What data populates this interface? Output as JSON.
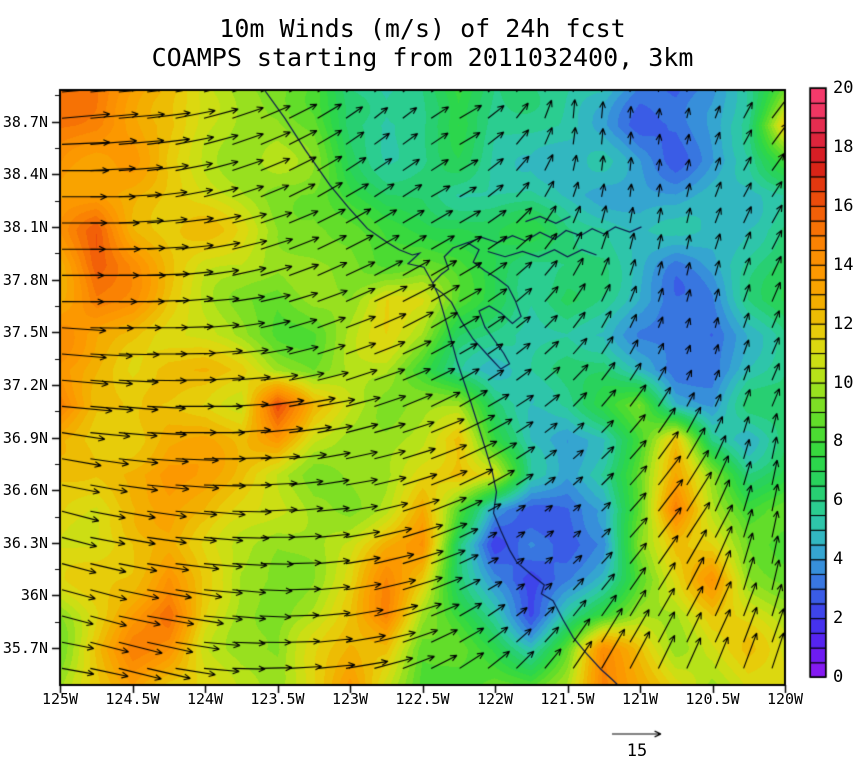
{
  "chart_data": {
    "type": "heatmap",
    "variant": "wind_vector_field_map",
    "title": "10m Winds (m/s) of 24h fcst",
    "subtitle": "COAMPS starting from 2011032400, 3km",
    "units": "m/s",
    "lon_range": [
      -125,
      -120
    ],
    "lat_range": [
      35.49,
      38.88
    ],
    "x_axis": {
      "tick_labels": [
        "125W",
        "124.5W",
        "124W",
        "123.5W",
        "123W",
        "122.5W",
        "122W",
        "121.5W",
        "121W",
        "120.5W",
        "120W"
      ],
      "tick_values": [
        -125,
        -124.5,
        -124,
        -123.5,
        -123,
        -122.5,
        -122,
        -121.5,
        -121,
        -120.5,
        -120
      ]
    },
    "y_axis": {
      "tick_labels": [
        "38.7N",
        "38.4N",
        "38.1N",
        "37.8N",
        "37.5N",
        "37.2N",
        "36.9N",
        "36.6N",
        "36.3N",
        "36N",
        "35.7N"
      ],
      "tick_values": [
        38.7,
        38.4,
        38.1,
        37.8,
        37.5,
        37.2,
        36.9,
        36.6,
        36.3,
        36,
        35.7
      ]
    },
    "colorbar": {
      "min": 0,
      "max": 20,
      "segment_step": 0.5,
      "tick_labels": [
        "20",
        "18",
        "16",
        "14",
        "12",
        "10",
        "8",
        "6",
        "4",
        "2",
        "0"
      ],
      "tick_values": [
        20,
        18,
        16,
        14,
        12,
        10,
        8,
        6,
        4,
        2,
        0
      ],
      "stops": [
        [
          0,
          "#A020F2"
        ],
        [
          1,
          "#7A18F2"
        ],
        [
          2,
          "#4A28F0"
        ],
        [
          3,
          "#3A4EE8"
        ],
        [
          4,
          "#3884DE"
        ],
        [
          5,
          "#34B0CC"
        ],
        [
          6,
          "#2CCC9E"
        ],
        [
          7,
          "#27D064"
        ],
        [
          8,
          "#2ED844"
        ],
        [
          9,
          "#55DC2C"
        ],
        [
          10,
          "#8AE022"
        ],
        [
          11,
          "#C4E216"
        ],
        [
          12,
          "#E4D40E"
        ],
        [
          13,
          "#F0B400"
        ],
        [
          14,
          "#FC9D00"
        ],
        [
          15,
          "#FB8A02"
        ],
        [
          16,
          "#F56A06"
        ],
        [
          17,
          "#E8420D"
        ],
        [
          18,
          "#D41A1A"
        ],
        [
          19,
          "#E02847"
        ],
        [
          20,
          "#F43A6B"
        ]
      ]
    },
    "reference_arrow": {
      "speed_m_s": 15,
      "label": "15"
    },
    "grid": {
      "cols": 21,
      "rows": 18,
      "speed": [
        [
          15,
          15,
          14,
          13,
          11,
          10,
          10,
          9,
          6,
          5,
          6,
          8,
          6,
          6,
          6,
          6,
          4,
          3,
          4,
          6,
          9
        ],
        [
          15,
          15,
          14,
          13,
          11,
          10,
          10,
          9,
          6,
          5,
          6,
          8,
          6,
          6,
          6,
          5,
          3,
          3,
          4,
          6,
          12
        ],
        [
          15,
          14,
          14,
          12,
          11,
          10,
          10,
          9,
          7,
          6,
          6,
          7,
          6,
          6,
          5,
          5,
          4,
          3,
          4,
          5,
          8
        ],
        [
          14,
          14,
          13,
          12,
          11,
          10,
          9,
          9,
          8,
          7,
          7,
          6,
          6,
          6,
          5,
          4,
          4,
          4,
          5,
          5,
          6
        ],
        [
          14,
          16,
          13,
          12,
          12,
          11,
          10,
          10,
          9,
          8,
          8,
          8,
          7,
          7,
          6,
          6,
          5,
          5,
          5,
          6,
          7
        ],
        [
          13,
          16,
          14,
          12,
          11,
          11,
          10,
          10,
          10,
          9,
          9,
          8,
          7,
          6,
          6,
          6,
          5,
          4,
          5,
          6,
          7
        ],
        [
          13,
          15,
          14,
          12,
          11,
          10,
          9,
          10,
          10,
          12,
          11,
          8,
          7,
          6,
          7,
          6,
          5,
          4,
          4,
          6,
          7
        ],
        [
          14,
          13,
          13,
          12,
          11,
          10,
          9,
          9,
          10,
          11,
          10,
          7,
          6,
          5,
          6,
          6,
          4,
          3,
          3,
          5,
          6
        ],
        [
          14,
          13,
          12,
          13,
          13,
          12,
          10,
          9,
          10,
          10,
          8,
          6,
          5,
          6,
          7,
          7,
          5,
          3,
          3,
          5,
          6
        ],
        [
          16,
          13,
          12,
          12,
          12,
          11,
          16,
          12,
          11,
          10,
          10,
          10,
          7,
          6,
          6,
          7,
          9,
          5,
          4,
          6,
          6
        ],
        [
          13,
          12,
          12,
          13,
          13,
          12,
          14,
          11,
          10,
          10,
          11,
          13,
          8,
          5,
          4,
          5,
          8,
          12,
          6,
          5,
          7
        ],
        [
          12,
          12,
          13,
          14,
          13,
          12,
          11,
          10,
          10,
          10,
          12,
          13,
          11,
          5,
          4,
          6,
          9,
          13,
          10,
          7,
          8
        ],
        [
          12,
          11,
          12,
          13,
          13,
          12,
          11,
          10,
          10,
          11,
          13,
          8,
          4,
          3,
          3,
          4,
          9,
          16,
          11,
          8,
          9
        ],
        [
          11,
          11,
          12,
          13,
          12,
          11,
          10,
          10,
          11,
          13,
          14,
          6,
          2,
          4,
          3,
          4,
          10,
          13,
          12,
          9,
          8
        ],
        [
          11,
          12,
          13,
          15,
          12,
          10,
          10,
          10,
          11,
          14,
          12,
          7,
          4,
          2,
          4,
          6,
          9,
          11,
          14,
          10,
          9
        ],
        [
          10,
          12,
          14,
          16,
          12,
          10,
          9,
          10,
          12,
          15,
          10,
          8,
          6,
          3,
          6,
          8,
          10,
          10,
          12,
          11,
          10
        ],
        [
          10,
          13,
          15,
          14,
          11,
          10,
          9,
          11,
          13,
          13,
          9,
          9,
          8,
          6,
          9,
          14,
          12,
          10,
          11,
          12,
          11
        ],
        [
          10,
          12,
          14,
          12,
          11,
          10,
          10,
          12,
          14,
          11,
          9,
          9,
          9,
          8,
          10,
          15,
          13,
          11,
          10,
          12,
          12
        ]
      ],
      "direction_deg_ccw_from_east": [
        [
          5,
          5,
          5,
          10,
          15,
          20,
          25,
          30,
          35,
          40,
          30,
          30,
          40,
          60,
          85,
          85,
          85,
          80,
          70,
          60,
          45
        ],
        [
          5,
          5,
          5,
          10,
          15,
          20,
          25,
          30,
          35,
          40,
          35,
          30,
          40,
          60,
          85,
          85,
          85,
          80,
          70,
          60,
          50
        ],
        [
          0,
          5,
          5,
          10,
          15,
          20,
          25,
          30,
          35,
          35,
          35,
          30,
          40,
          55,
          80,
          85,
          85,
          80,
          70,
          60,
          50
        ],
        [
          0,
          0,
          5,
          10,
          15,
          20,
          25,
          30,
          30,
          35,
          30,
          30,
          40,
          55,
          70,
          80,
          85,
          80,
          70,
          60,
          55
        ],
        [
          0,
          0,
          5,
          5,
          10,
          15,
          20,
          25,
          30,
          30,
          30,
          30,
          35,
          50,
          65,
          75,
          80,
          80,
          70,
          65,
          60
        ],
        [
          0,
          0,
          0,
          5,
          10,
          15,
          20,
          25,
          25,
          30,
          30,
          30,
          35,
          45,
          60,
          70,
          75,
          80,
          75,
          70,
          60
        ],
        [
          0,
          0,
          0,
          5,
          5,
          10,
          15,
          20,
          25,
          25,
          30,
          30,
          35,
          45,
          55,
          65,
          70,
          75,
          75,
          70,
          65
        ],
        [
          -5,
          0,
          0,
          0,
          5,
          10,
          15,
          20,
          20,
          25,
          30,
          30,
          35,
          40,
          50,
          60,
          65,
          70,
          75,
          70,
          65
        ],
        [
          -5,
          -5,
          0,
          0,
          5,
          5,
          10,
          15,
          20,
          20,
          25,
          30,
          35,
          40,
          45,
          55,
          60,
          65,
          70,
          70,
          65
        ],
        [
          -5,
          -5,
          -5,
          0,
          0,
          5,
          10,
          10,
          15,
          20,
          25,
          30,
          30,
          35,
          45,
          50,
          55,
          60,
          65,
          70,
          65
        ],
        [
          -10,
          -5,
          -5,
          0,
          0,
          5,
          5,
          10,
          15,
          15,
          20,
          25,
          30,
          35,
          40,
          45,
          50,
          60,
          65,
          75,
          80
        ],
        [
          -10,
          -10,
          -5,
          -5,
          0,
          0,
          5,
          10,
          10,
          15,
          20,
          25,
          30,
          35,
          40,
          45,
          50,
          55,
          65,
          75,
          80
        ],
        [
          -15,
          -10,
          -10,
          -5,
          -5,
          0,
          5,
          5,
          10,
          15,
          20,
          25,
          30,
          35,
          40,
          45,
          50,
          55,
          65,
          75,
          80
        ],
        [
          -15,
          -10,
          -10,
          -5,
          -5,
          0,
          0,
          5,
          10,
          15,
          20,
          25,
          30,
          35,
          40,
          45,
          50,
          55,
          60,
          75,
          80
        ],
        [
          -15,
          -15,
          -10,
          -10,
          -5,
          -5,
          0,
          5,
          10,
          15,
          20,
          25,
          30,
          40,
          45,
          50,
          55,
          60,
          70,
          75,
          80
        ],
        [
          -15,
          -15,
          -10,
          -10,
          -5,
          -5,
          0,
          5,
          10,
          15,
          20,
          30,
          35,
          40,
          50,
          55,
          60,
          60,
          65,
          70,
          75
        ],
        [
          -10,
          -15,
          -15,
          -10,
          -5,
          0,
          0,
          5,
          10,
          15,
          25,
          30,
          40,
          45,
          55,
          60,
          60,
          65,
          65,
          70,
          70
        ],
        [
          -10,
          -10,
          -15,
          -10,
          -5,
          0,
          5,
          5,
          10,
          20,
          25,
          35,
          40,
          50,
          55,
          60,
          65,
          65,
          70,
          70,
          75
        ]
      ]
    },
    "map": {
      "coastline": [
        [
          -123.59,
          38.88
        ],
        [
          -123.45,
          38.72
        ],
        [
          -123.31,
          38.54
        ],
        [
          -123.14,
          38.34
        ],
        [
          -123.01,
          38.21
        ],
        [
          -122.88,
          38.09
        ],
        [
          -122.74,
          38.01
        ],
        [
          -122.66,
          37.97
        ],
        [
          -122.57,
          37.94
        ],
        [
          -122.52,
          37.95
        ],
        [
          -122.6,
          37.89
        ],
        [
          -122.49,
          37.87
        ],
        [
          -122.43,
          37.78
        ],
        [
          -122.39,
          37.71
        ],
        [
          -122.32,
          37.51
        ],
        [
          -122.26,
          37.33
        ],
        [
          -122.17,
          37.11
        ],
        [
          -122.09,
          36.9
        ],
        [
          -122.02,
          36.71
        ],
        [
          -121.99,
          36.59
        ],
        [
          -122.01,
          36.47
        ],
        [
          -121.96,
          36.37
        ],
        [
          -121.9,
          36.26
        ],
        [
          -121.85,
          36.19
        ],
        [
          -121.75,
          36.12
        ],
        [
          -121.66,
          36.06
        ],
        [
          -121.68,
          36.01
        ],
        [
          -121.6,
          35.97
        ],
        [
          -121.53,
          35.86
        ],
        [
          -121.46,
          35.76
        ],
        [
          -121.37,
          35.67
        ],
        [
          -121.27,
          35.58
        ],
        [
          -121.19,
          35.52
        ],
        [
          -121.14,
          35.48
        ]
      ],
      "bay": [
        [
          -122.43,
          37.78
        ],
        [
          -122.37,
          37.83
        ],
        [
          -122.32,
          37.86
        ],
        [
          -122.35,
          37.93
        ],
        [
          -122.29,
          37.98
        ],
        [
          -122.19,
          38.01
        ],
        [
          -122.11,
          37.97
        ],
        [
          -122.15,
          37.9
        ],
        [
          -122.07,
          37.85
        ],
        [
          -121.99,
          37.81
        ],
        [
          -121.91,
          37.76
        ],
        [
          -121.86,
          37.68
        ],
        [
          -121.82,
          37.59
        ],
        [
          -121.88,
          37.55
        ],
        [
          -121.96,
          37.61
        ],
        [
          -122.04,
          37.65
        ],
        [
          -122.11,
          37.62
        ],
        [
          -122.07,
          37.53
        ],
        [
          -122.0,
          37.45
        ],
        [
          -121.94,
          37.38
        ],
        [
          -121.9,
          37.32
        ],
        [
          -121.96,
          37.29
        ],
        [
          -122.04,
          37.36
        ],
        [
          -122.15,
          37.46
        ],
        [
          -122.23,
          37.56
        ],
        [
          -122.3,
          37.67
        ],
        [
          -122.36,
          37.72
        ],
        [
          -122.41,
          37.75
        ]
      ],
      "delta": [
        [
          [
            -122.19,
            38.01
          ],
          [
            -122.09,
            38.04
          ],
          [
            -121.98,
            38.01
          ],
          [
            -121.88,
            38.05
          ],
          [
            -121.79,
            38.02
          ],
          [
            -121.69,
            38.07
          ],
          [
            -121.59,
            38.03
          ],
          [
            -121.51,
            38.08
          ],
          [
            -121.41,
            38.05
          ],
          [
            -121.33,
            38.09
          ],
          [
            -121.25,
            38.06
          ],
          [
            -121.17,
            38.1
          ],
          [
            -121.07,
            38.07
          ],
          [
            -120.99,
            38.1
          ]
        ],
        [
          [
            -122.05,
            37.96
          ],
          [
            -121.93,
            37.93
          ],
          [
            -121.81,
            37.96
          ],
          [
            -121.7,
            37.93
          ],
          [
            -121.59,
            37.97
          ],
          [
            -121.5,
            37.93
          ],
          [
            -121.4,
            37.97
          ],
          [
            -121.3,
            37.94
          ]
        ],
        [
          [
            -121.79,
            38.13
          ],
          [
            -121.69,
            38.16
          ],
          [
            -121.58,
            38.12
          ],
          [
            -121.48,
            38.16
          ]
        ]
      ]
    }
  }
}
